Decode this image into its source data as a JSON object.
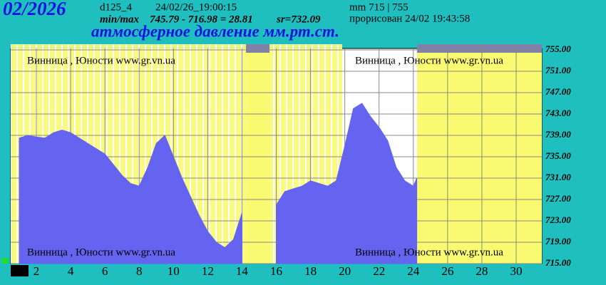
{
  "header": {
    "title": "02/2026",
    "station": "d125_4",
    "timestamp": "24/02/26_19:00:15",
    "minmax_label": "min/max",
    "minmax": "745.79 - 716.98 = 28.81",
    "mean": "sr=732.09",
    "range": "mm 715 | 755",
    "drawn": "прорисован 24/02 19:43:58"
  },
  "chart_data": {
    "type": "area",
    "title": "атмосферное давление мм.рт.ст.",
    "watermark": "Винница , Юности  www.gr.vn.ua",
    "color": "#6464f0",
    "x": [
      1.0,
      1.5,
      2.0,
      2.5,
      3.0,
      3.5,
      4.0,
      4.5,
      5.0,
      5.5,
      6.0,
      6.5,
      7.0,
      7.5,
      8.0,
      8.5,
      9.0,
      9.5,
      10.0,
      10.5,
      11.0,
      11.5,
      12.0,
      12.5,
      13.0,
      13.5,
      14.0,
      14.5,
      15.0,
      15.5,
      16.0,
      16.5,
      17.0,
      17.5,
      18.0,
      18.5,
      19.0,
      19.5,
      20.0,
      20.5,
      21.0,
      21.5,
      22.0,
      22.5,
      23.0,
      23.5,
      24.0,
      24.2
    ],
    "values": [
      738.5,
      739,
      738.7,
      738.5,
      739.5,
      740,
      739.5,
      738.5,
      737.5,
      736.5,
      735.5,
      733.5,
      731.5,
      730,
      729.5,
      733,
      737.5,
      739,
      735,
      731,
      727.5,
      724,
      721,
      719,
      718,
      719.5,
      724.5,
      null,
      null,
      null,
      726,
      728.5,
      729,
      729.5,
      730.5,
      730,
      729.5,
      730.5,
      737,
      744,
      745,
      742.5,
      740.5,
      738,
      733,
      730.5,
      729.5,
      731
    ],
    "xlim": [
      0.5,
      31.5
    ],
    "xticks": [
      2,
      4,
      6,
      8,
      10,
      12,
      14,
      16,
      18,
      20,
      22,
      24,
      26,
      28,
      30
    ],
    "ylim": [
      715,
      755
    ],
    "yticks": [
      {
        "value": 755,
        "label": "755.00"
      },
      {
        "value": 751,
        "label": "751.00"
      },
      {
        "value": 747,
        "label": "747.00"
      },
      {
        "value": 743,
        "label": "743.00"
      },
      {
        "value": 739,
        "label": "739.00"
      },
      {
        "value": 735,
        "label": "735.00"
      },
      {
        "value": 731,
        "label": "731.00"
      },
      {
        "value": 727,
        "label": "727.00"
      },
      {
        "value": 723,
        "label": "723.00"
      },
      {
        "value": 719,
        "label": "719.00"
      },
      {
        "value": 715,
        "label": "715.00"
      }
    ],
    "grid": true
  }
}
